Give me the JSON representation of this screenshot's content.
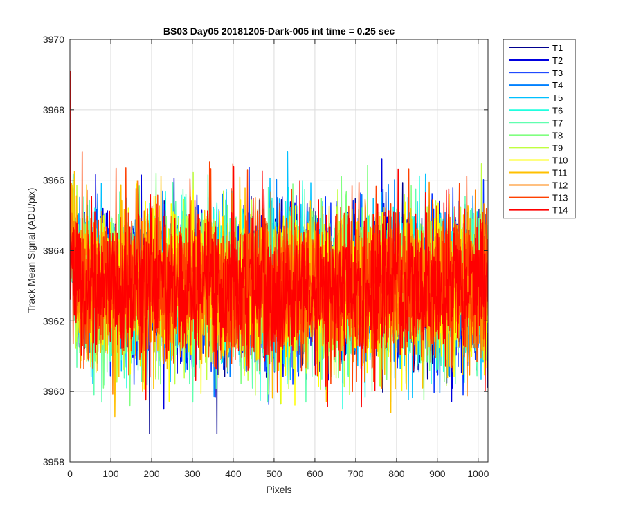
{
  "chart_data": {
    "type": "line",
    "title": "BS03 Day05 20181205-Dark-005 int time = 0.25 sec",
    "xlabel": "Pixels",
    "ylabel": "Track Mean Signal (ADU/pix)",
    "xlim": [
      0,
      1024
    ],
    "ylim": [
      3958,
      3970
    ],
    "xticks": [
      0,
      100,
      200,
      300,
      400,
      500,
      600,
      700,
      800,
      900,
      1000
    ],
    "yticks": [
      3958,
      3960,
      3962,
      3964,
      3966,
      3968,
      3970
    ],
    "grid": true,
    "legend_position": "outside-top-right",
    "series_note": "noisy dark-frame signal, ~1024 pixels per track",
    "series": [
      {
        "name": "T1",
        "color": "#00008f",
        "mean": 3963.0,
        "std": 1.05,
        "min": 3958.8,
        "max": 3967.2
      },
      {
        "name": "T2",
        "color": "#0000df",
        "mean": 3963.0,
        "std": 1.05,
        "min": 3959.5,
        "max": 3966.9
      },
      {
        "name": "T3",
        "color": "#0030ff",
        "mean": 3963.0,
        "std": 1.05,
        "min": 3959.6,
        "max": 3966.7
      },
      {
        "name": "T4",
        "color": "#0080ff",
        "mean": 3963.0,
        "std": 1.05,
        "min": 3959.4,
        "max": 3966.6
      },
      {
        "name": "T5",
        "color": "#00c0ff",
        "mean": 3963.0,
        "std": 1.05,
        "min": 3958.9,
        "max": 3967.2
      },
      {
        "name": "T6",
        "color": "#20ffdf",
        "mean": 3963.0,
        "std": 1.05,
        "min": 3959.5,
        "max": 3966.5
      },
      {
        "name": "T7",
        "color": "#60ffaf",
        "mean": 3963.0,
        "std": 1.05,
        "min": 3959.7,
        "max": 3966.4
      },
      {
        "name": "T8",
        "color": "#80ff80",
        "mean": 3963.0,
        "std": 1.05,
        "min": 3959.6,
        "max": 3966.5
      },
      {
        "name": "T9",
        "color": "#c0ff40",
        "mean": 3963.0,
        "std": 1.05,
        "min": 3959.4,
        "max": 3966.6
      },
      {
        "name": "T10",
        "color": "#ffff00",
        "mean": 3963.0,
        "std": 1.05,
        "min": 3958.6,
        "max": 3967.4
      },
      {
        "name": "T11",
        "color": "#ffc000",
        "mean": 3963.0,
        "std": 1.05,
        "min": 3958.6,
        "max": 3966.9
      },
      {
        "name": "T12",
        "color": "#ff8000",
        "mean": 3963.0,
        "std": 1.05,
        "min": 3959.6,
        "max": 3967.0
      },
      {
        "name": "T13",
        "color": "#ff4000",
        "mean": 3963.0,
        "std": 1.05,
        "min": 3959.7,
        "max": 3966.8
      },
      {
        "name": "T14",
        "color": "#ff0000",
        "mean": 3963.0,
        "std": 1.05,
        "min": 3959.3,
        "max": 3969.1
      }
    ]
  }
}
